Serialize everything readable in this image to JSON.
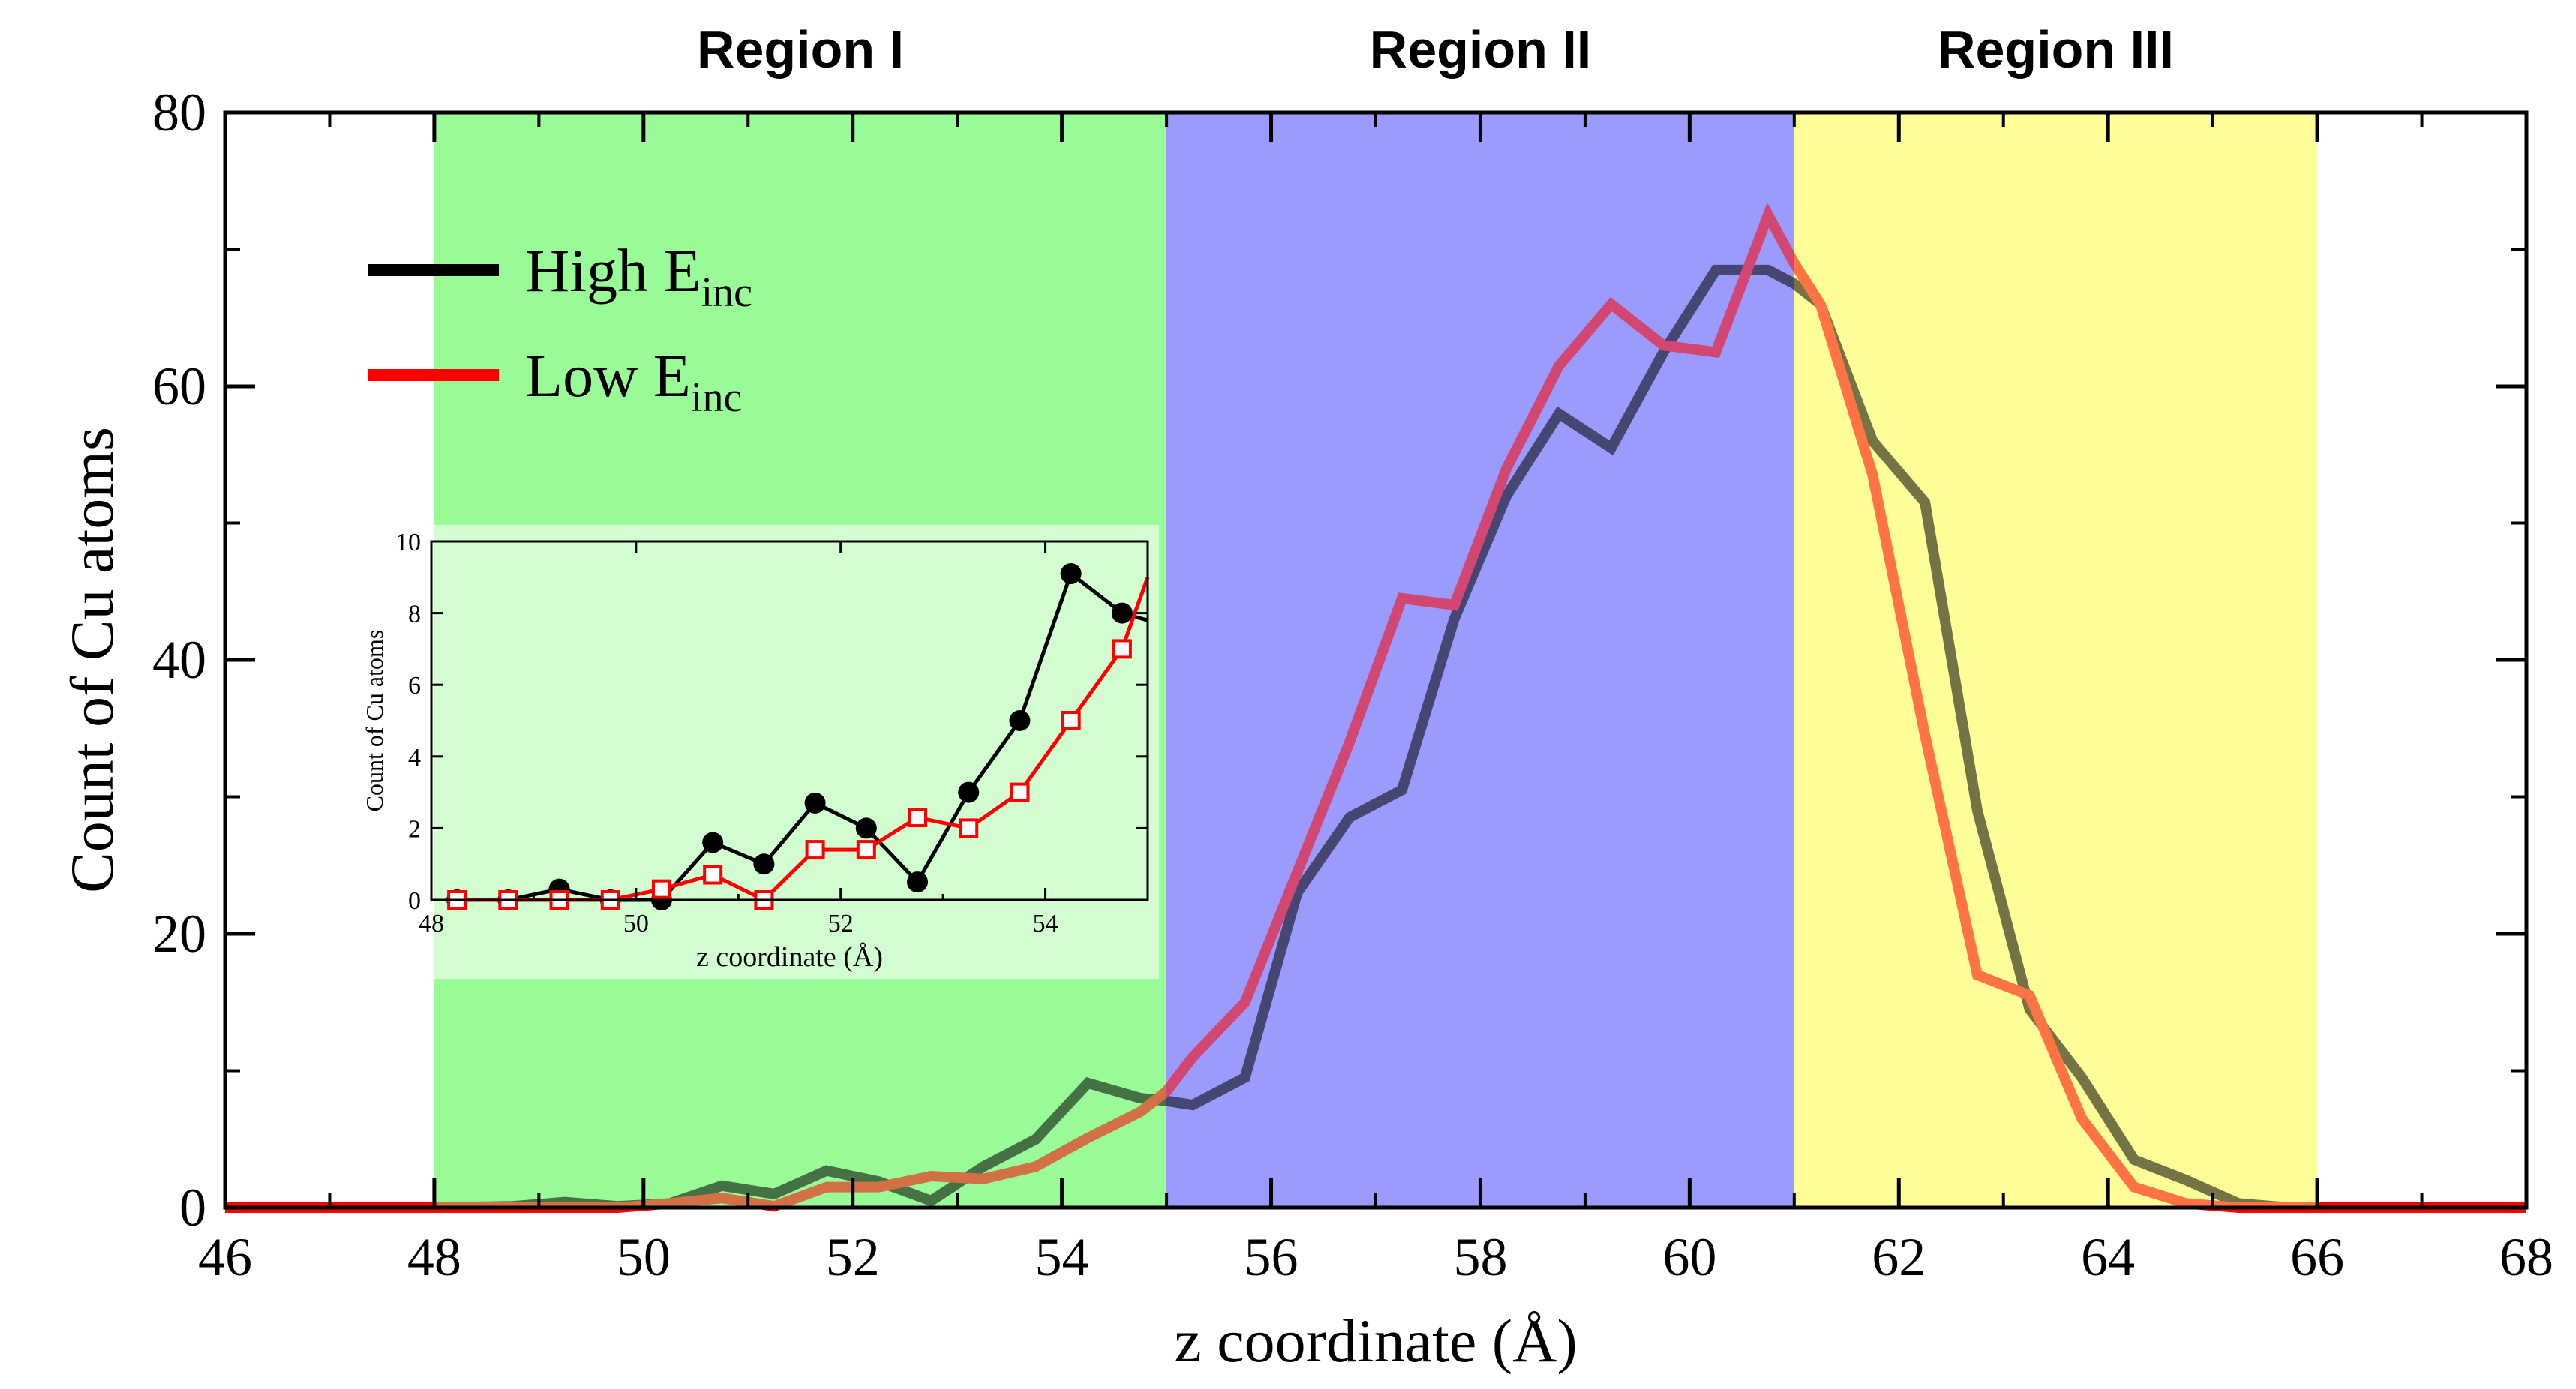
{
  "chart_data": [
    {
      "type": "line",
      "role": "main",
      "title": "",
      "xlabel": "z coordinate (Å)",
      "ylabel": "Count of Cu atoms",
      "xlim": [
        46,
        68
      ],
      "ylim": [
        0,
        80
      ],
      "xticks": [
        46,
        48,
        50,
        52,
        54,
        56,
        58,
        60,
        62,
        64,
        66,
        68
      ],
      "yticks": [
        0,
        20,
        40,
        60,
        80
      ],
      "regions": [
        {
          "label": "Region I",
          "x": [
            48,
            55
          ],
          "color": "#99fb98"
        },
        {
          "label": "Region II",
          "x": [
            55,
            61
          ],
          "color": "#9b9bfd"
        },
        {
          "label": "Region III",
          "x": [
            61,
            66
          ],
          "color": "#fefe99"
        }
      ],
      "legend": {
        "position": "top-left",
        "entries": [
          {
            "name": "High E",
            "sub": "inc",
            "color": "#000000"
          },
          {
            "name": "Low E",
            "sub": "inc",
            "color": "#ff0000"
          }
        ]
      },
      "series": [
        {
          "name": "High E_inc",
          "color": "#000000",
          "x": [
            46,
            47,
            48,
            48.75,
            49.25,
            49.75,
            50.25,
            50.75,
            51.25,
            51.75,
            52.25,
            52.75,
            53.25,
            53.75,
            54.25,
            54.75,
            55.0,
            55.25,
            55.75,
            56.25,
            56.75,
            57.25,
            57.75,
            58.25,
            58.75,
            59.25,
            59.75,
            60.25,
            60.75,
            61.0,
            61.25,
            61.75,
            62.25,
            62.75,
            63.25,
            63.75,
            64.25,
            64.75,
            65.25,
            65.75,
            66.0,
            67.0,
            68.0
          ],
          "y": [
            0,
            0,
            0,
            0.1,
            0.4,
            0.1,
            0.3,
            1.6,
            1.0,
            2.7,
            1.9,
            0.5,
            3.0,
            5.0,
            9.1,
            8.0,
            7.8,
            7.5,
            9.5,
            23,
            28.5,
            30.5,
            43,
            52,
            58,
            55.5,
            62.5,
            68.5,
            68.5,
            67.5,
            66,
            56,
            51.5,
            29,
            14.5,
            9.5,
            3.5,
            2,
            0.3,
            0,
            0,
            0,
            0
          ]
        },
        {
          "name": "Low E_inc",
          "color": "#ff0000",
          "x": [
            46,
            47,
            48,
            48.75,
            49.25,
            49.75,
            50.25,
            50.75,
            51.25,
            51.75,
            52.25,
            52.75,
            53.25,
            53.75,
            54.25,
            54.75,
            55.0,
            55.25,
            55.75,
            56.25,
            56.75,
            57.25,
            57.75,
            58.25,
            58.75,
            59.25,
            59.75,
            60.25,
            60.75,
            61.0,
            61.25,
            61.75,
            62.25,
            62.75,
            63.25,
            63.75,
            64.25,
            64.75,
            65.25,
            65.75,
            66.0,
            67.0,
            68.0
          ],
          "y": [
            0,
            0,
            0,
            0,
            0,
            0,
            0.3,
            0.7,
            0.1,
            1.5,
            1.5,
            2.3,
            2.1,
            3.0,
            5.1,
            7.0,
            8.5,
            11,
            15,
            24.5,
            34,
            44.5,
            44,
            54,
            61.5,
            66,
            63,
            62.5,
            72.5,
            69,
            66,
            53.5,
            34.5,
            17,
            15.5,
            6.5,
            1.5,
            0.3,
            0,
            0,
            0,
            0,
            0
          ]
        }
      ]
    },
    {
      "type": "line",
      "role": "inset",
      "title": "",
      "xlabel": "z coordinate (Å)",
      "ylabel": "Count of Cu atoms",
      "xlim": [
        48,
        55
      ],
      "ylim": [
        0,
        10
      ],
      "xticks": [
        48,
        50,
        52,
        54
      ],
      "yticks": [
        0,
        2,
        4,
        6,
        8,
        10
      ],
      "series": [
        {
          "name": "High E_inc",
          "color": "#000000",
          "marker": "filled-circle",
          "x": [
            48.25,
            48.75,
            49.25,
            49.75,
            50.25,
            50.75,
            51.25,
            51.75,
            52.25,
            52.75,
            53.25,
            53.75,
            54.25,
            54.75,
            55.0
          ],
          "y": [
            0,
            0,
            0.3,
            0,
            0,
            1.6,
            1.0,
            2.7,
            2.0,
            0.5,
            3.0,
            5.0,
            9.1,
            8.0,
            7.8
          ]
        },
        {
          "name": "Low E_inc",
          "color": "#ff0000",
          "marker": "open-square",
          "x": [
            48.25,
            48.75,
            49.25,
            49.75,
            50.25,
            50.75,
            51.25,
            51.75,
            52.25,
            52.75,
            53.25,
            53.75,
            54.25,
            54.75,
            55.0
          ],
          "y": [
            0,
            0,
            0,
            0,
            0.3,
            0.7,
            0,
            1.4,
            1.4,
            2.3,
            2.0,
            3.0,
            5.0,
            7.0,
            9.0
          ]
        }
      ]
    }
  ]
}
